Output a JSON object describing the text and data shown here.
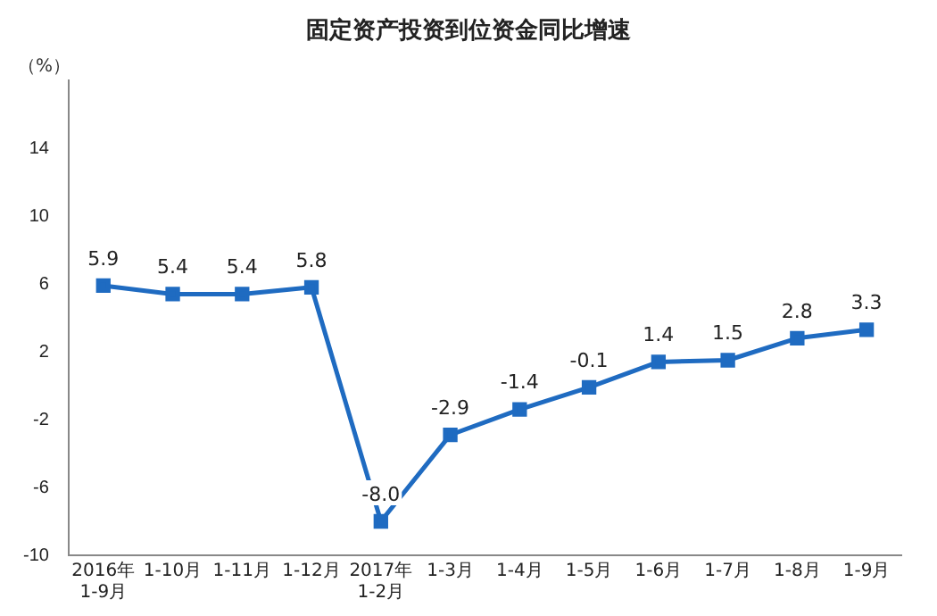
{
  "chart_data": {
    "type": "line",
    "title": "固定资产投资到位资金同比增速",
    "ylabel": "（%）",
    "categories": [
      "2016年\n1-9月",
      "1-10月",
      "1-11月",
      "1-12月",
      "2017年\n1-2月",
      "1-3月",
      "1-4月",
      "1-5月",
      "1-6月",
      "1-7月",
      "1-8月",
      "1-9月"
    ],
    "series": [
      {
        "color": "#1f6bc1",
        "values": [
          5.9,
          5.4,
          5.4,
          5.8,
          -8.0,
          -2.9,
          -1.4,
          -0.1,
          1.4,
          1.5,
          2.8,
          3.3
        ]
      }
    ],
    "value_labels": [
      "5.9",
      "5.4",
      "5.4",
      "5.8",
      "-8.0",
      "-2.9",
      "-1.4",
      "-0.1",
      "1.4",
      "1.5",
      "2.8",
      "3.3"
    ],
    "ylim": [
      -10,
      18
    ],
    "yticks": [
      -10,
      -6,
      -2,
      2,
      6,
      10,
      14
    ],
    "grid": false,
    "legend": false,
    "marker": "square",
    "line_style": "solid"
  }
}
